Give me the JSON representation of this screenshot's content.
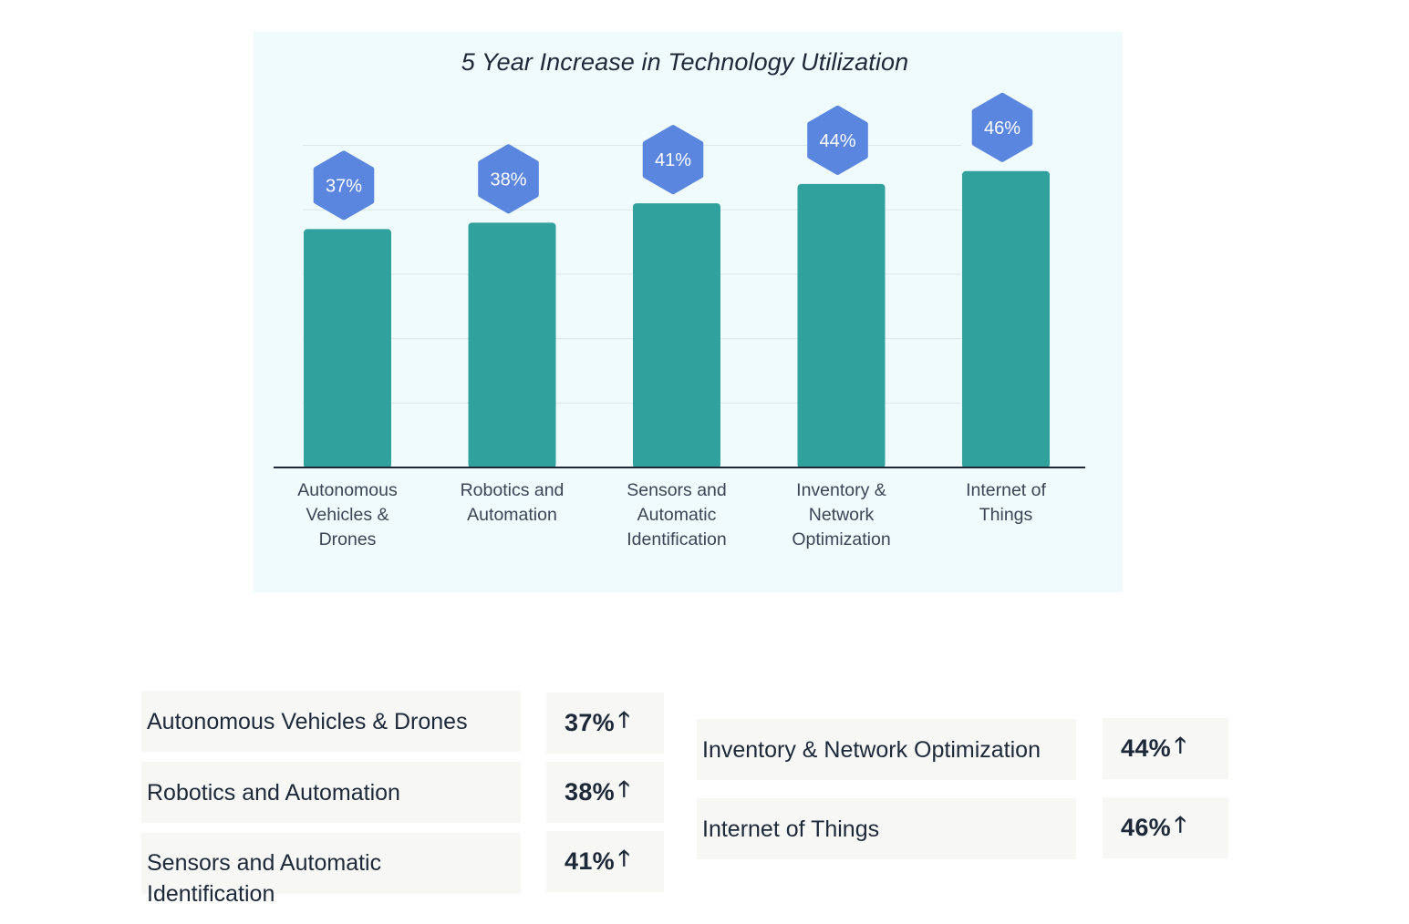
{
  "chart_data": {
    "type": "bar",
    "title": "5 Year Increase in Technology Utilization",
    "categories": [
      "Autonomous Vehicles & Drones",
      "Robotics and Automation",
      "Sensors and Automatic Identification",
      "Inventory & Network Optimization",
      "Internet of Things"
    ],
    "tick_labels": [
      [
        "Autonomous",
        "Vehicles &",
        "Drones"
      ],
      [
        "Robotics and",
        "Automation"
      ],
      [
        "Sensors and",
        "Automatic",
        "Identification"
      ],
      [
        "Inventory &",
        "Network",
        "Optimization"
      ],
      [
        "Internet of",
        "Things"
      ]
    ],
    "values": [
      37,
      38,
      41,
      44,
      46
    ],
    "data_labels": [
      "37%",
      "38%",
      "41%",
      "44%",
      "46%"
    ],
    "xlabel": "",
    "ylabel": "",
    "ylim": [
      0,
      50
    ],
    "grid": true,
    "y_axis_visible": false,
    "colors": {
      "bar": "#31a19d",
      "badge": "#5b86e0",
      "badge_text": "#ffffff",
      "panel": "#effbfd",
      "gridline": "#dbe7ea",
      "baseline": "#1d2838"
    }
  },
  "summary": {
    "left": [
      {
        "label": "Autonomous Vehicles & Drones",
        "value": "37%"
      },
      {
        "label": "Robotics and Automation",
        "value": "38%"
      },
      {
        "label": "Sensors and Automatic Identification",
        "value": "41%"
      }
    ],
    "right": [
      {
        "label": "Inventory & Network Optimization",
        "value": "44%"
      },
      {
        "label": "Internet of Things",
        "value": "46%"
      }
    ],
    "arrow_icon": "arrow-up-icon",
    "arrow_glyph": "🡑"
  }
}
